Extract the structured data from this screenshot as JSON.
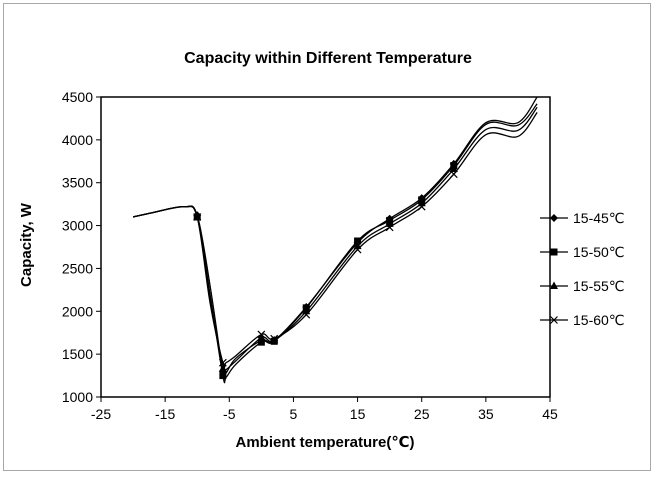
{
  "chart_data": {
    "type": "line",
    "title": "Capacity within Different Temperature",
    "xlabel": "Ambient temperature(℃)",
    "ylabel": "Capacity, W",
    "xlim": [
      -25,
      45
    ],
    "ylim": [
      1000,
      4500
    ],
    "xticks": [
      "-25",
      "-15",
      "-5",
      "5",
      "15",
      "25",
      "35",
      "45"
    ],
    "yticks": [
      "1000",
      "1500",
      "2000",
      "2500",
      "3000",
      "3500",
      "4000",
      "4500"
    ],
    "grid": false,
    "legend_position": "right",
    "line_color": "#000000",
    "series": [
      {
        "name": "15-45℃",
        "marker": "diamond",
        "x": [
          -20,
          -17,
          -12,
          -10,
          -8,
          -6,
          -5.5,
          -4,
          0,
          2,
          7,
          15,
          20,
          25,
          30,
          35,
          40,
          43
        ],
        "y": [
          3100,
          3150,
          3220,
          3120,
          2300,
          1300,
          1280,
          1450,
          1660,
          1660,
          2050,
          2800,
          3080,
          3320,
          3720,
          4200,
          4200,
          4500
        ]
      },
      {
        "name": "15-50℃",
        "marker": "square",
        "x": [
          -20,
          -17,
          -12,
          -10,
          -8,
          -6,
          -5.5,
          -4,
          0,
          2,
          7,
          15,
          20,
          25,
          30,
          35,
          40,
          43
        ],
        "y": [
          3100,
          3150,
          3220,
          3100,
          2200,
          1250,
          1230,
          1380,
          1640,
          1650,
          2040,
          2820,
          3060,
          3300,
          3700,
          4180,
          4170,
          4420
        ]
      },
      {
        "name": "15-55℃",
        "marker": "triangle",
        "x": [
          -20,
          -17,
          -12,
          -10,
          -8,
          -6,
          -5.5,
          -4,
          0,
          2,
          7,
          15,
          20,
          25,
          30,
          35,
          40,
          43
        ],
        "y": [
          3100,
          3150,
          3220,
          3100,
          2150,
          1330,
          1320,
          1420,
          1690,
          1660,
          2000,
          2760,
          3020,
          3260,
          3660,
          4120,
          4110,
          4380
        ]
      },
      {
        "name": "15-60℃",
        "marker": "x",
        "x": [
          -20,
          -17,
          -12,
          -10,
          -8,
          -6,
          -5.5,
          -4,
          0,
          2,
          7,
          15,
          20,
          25,
          30,
          35,
          40,
          43
        ],
        "y": [
          3100,
          3150,
          3220,
          3100,
          2100,
          1400,
          1400,
          1480,
          1730,
          1680,
          1960,
          2720,
          2980,
          3220,
          3600,
          4060,
          4040,
          4320
        ]
      }
    ]
  }
}
